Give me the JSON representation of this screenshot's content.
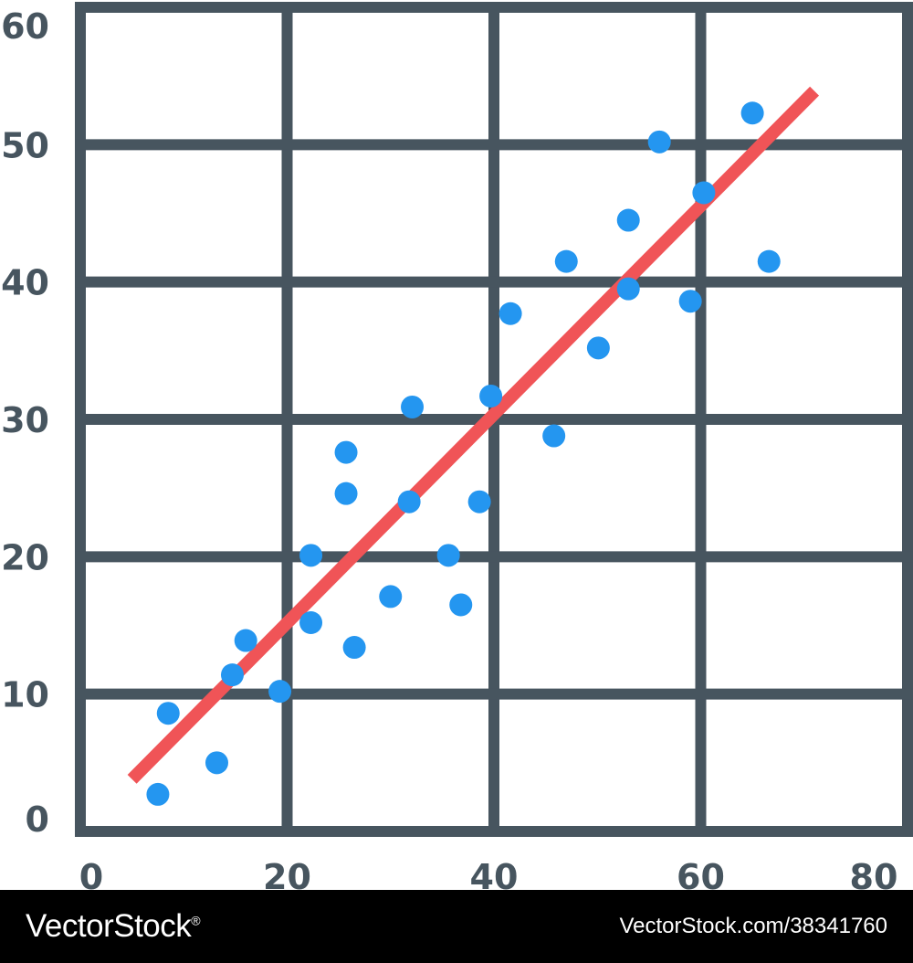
{
  "chart_data": {
    "type": "scatter",
    "title": "",
    "xlabel": "",
    "ylabel": "",
    "xlim": [
      0,
      80
    ],
    "ylim": [
      0,
      60
    ],
    "x_ticks": [
      "0",
      "20",
      "40",
      "60",
      "80"
    ],
    "y_ticks": [
      "0",
      "10",
      "20",
      "30",
      "40",
      "50",
      "60"
    ],
    "grid": true,
    "series": [
      {
        "values": [
          [
            7.5,
            2.7
          ],
          [
            8.5,
            8.6
          ],
          [
            13.2,
            5.0
          ],
          [
            14.7,
            11.4
          ],
          [
            16.0,
            13.9
          ],
          [
            19.3,
            10.2
          ],
          [
            22.3,
            15.2
          ],
          [
            22.3,
            20.1
          ],
          [
            25.7,
            24.6
          ],
          [
            25.7,
            27.6
          ],
          [
            26.5,
            13.4
          ],
          [
            30.0,
            17.1
          ],
          [
            31.8,
            24.0
          ],
          [
            32.1,
            30.9
          ],
          [
            35.6,
            20.1
          ],
          [
            36.8,
            16.5
          ],
          [
            38.6,
            24.0
          ],
          [
            39.7,
            31.7
          ],
          [
            41.6,
            37.7
          ],
          [
            45.8,
            28.8
          ],
          [
            47.0,
            41.5
          ],
          [
            50.1,
            35.2
          ],
          [
            53.0,
            39.5
          ],
          [
            53.0,
            44.5
          ],
          [
            56.0,
            50.2
          ],
          [
            59.0,
            38.6
          ],
          [
            60.3,
            46.5
          ],
          [
            65.0,
            52.3
          ],
          [
            66.6,
            41.5
          ]
        ]
      }
    ],
    "trendline": {
      "x": [
        5,
        71
      ],
      "y": [
        3.8,
        53.9
      ]
    },
    "colors": {
      "points": "#2496f0",
      "trendline": "#f05457",
      "grid": "#47555f",
      "ticks": "#47555f"
    }
  },
  "footer": {
    "brand": "VectorStock",
    "brand_mark": "®",
    "url": "VectorStock.com/38341760"
  }
}
